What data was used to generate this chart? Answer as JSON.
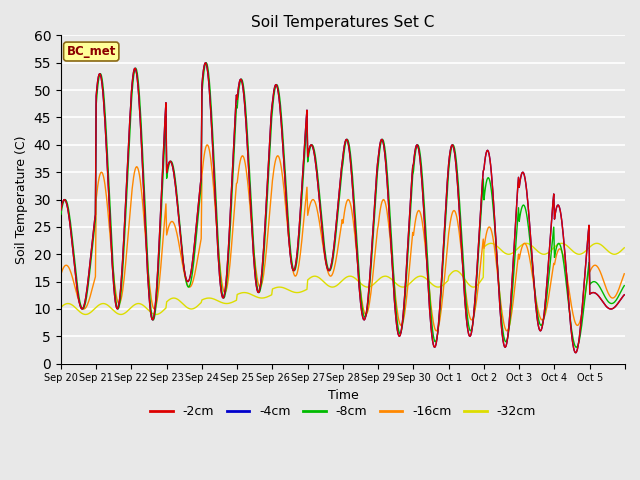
{
  "title": "Soil Temperatures Set C",
  "xlabel": "Time",
  "ylabel": "Soil Temperature (C)",
  "ylim": [
    0,
    60
  ],
  "annotation": "BC_met",
  "series_colors": {
    "-2cm": "#dd0000",
    "-4cm": "#0000cc",
    "-8cm": "#00bb00",
    "-16cm": "#ff8800",
    "-32cm": "#dddd00"
  },
  "bg_color": "#e8e8e8",
  "tick_labels": [
    "Sep 20",
    "Sep 21",
    "Sep 22",
    "Sep 23",
    "Sep 24",
    "Sep 25",
    "Sep 26",
    "Sep 27",
    "Sep 28",
    "Sep 29",
    "Sep 30",
    "Oct 1",
    "Oct 2",
    "Oct 3",
    "Oct 4",
    "Oct 5"
  ]
}
